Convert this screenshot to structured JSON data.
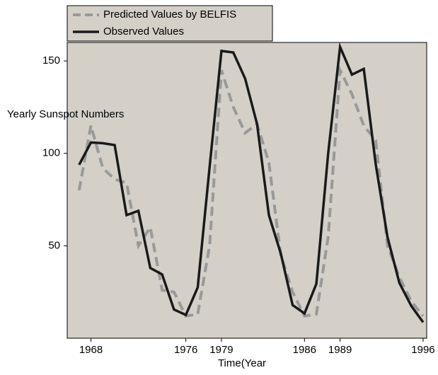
{
  "chart_data": {
    "type": "line",
    "y_label": "Yearly Sunspot Numbers",
    "x_label": "Time(Year",
    "x": [
      1967,
      1968,
      1969,
      1970,
      1971,
      1972,
      1973,
      1974,
      1975,
      1976,
      1977,
      1978,
      1979,
      1980,
      1981,
      1982,
      1983,
      1984,
      1985,
      1986,
      1987,
      1988,
      1989,
      1990,
      1991,
      1992,
      1993,
      1994,
      1995,
      1996
    ],
    "series": [
      {
        "name": "Predicted Values by BELFIS",
        "color": "#999999",
        "dash": true,
        "values": [
          80,
          115,
          92,
          86,
          84,
          50,
          60,
          26,
          25,
          12,
          13,
          50,
          145,
          125,
          111,
          116,
          95,
          45,
          25,
          12,
          13,
          55,
          145,
          132,
          115,
          107,
          50,
          33,
          20,
          12
        ]
      },
      {
        "name": "Observed Values",
        "color": "#1a1a1a",
        "dash": false,
        "values": [
          93.8,
          105.9,
          105.5,
          104.5,
          66.6,
          68.9,
          38.0,
          34.5,
          15.5,
          12.6,
          27.5,
          92.5,
          155.4,
          154.6,
          140.4,
          115.9,
          66.6,
          45.9,
          17.9,
          13.4,
          29.4,
          100.2,
          157.6,
          142.6,
          145.7,
          94.3,
          54.6,
          29.9,
          17.5,
          8.6
        ]
      }
    ],
    "xlim": [
      1966,
      1996.3
    ],
    "ylim": [
      0,
      160
    ],
    "xticks": [
      1968,
      1976,
      1979,
      1986,
      1989,
      1996
    ],
    "yticks": [
      50,
      100,
      150
    ],
    "legend": "top-left"
  }
}
